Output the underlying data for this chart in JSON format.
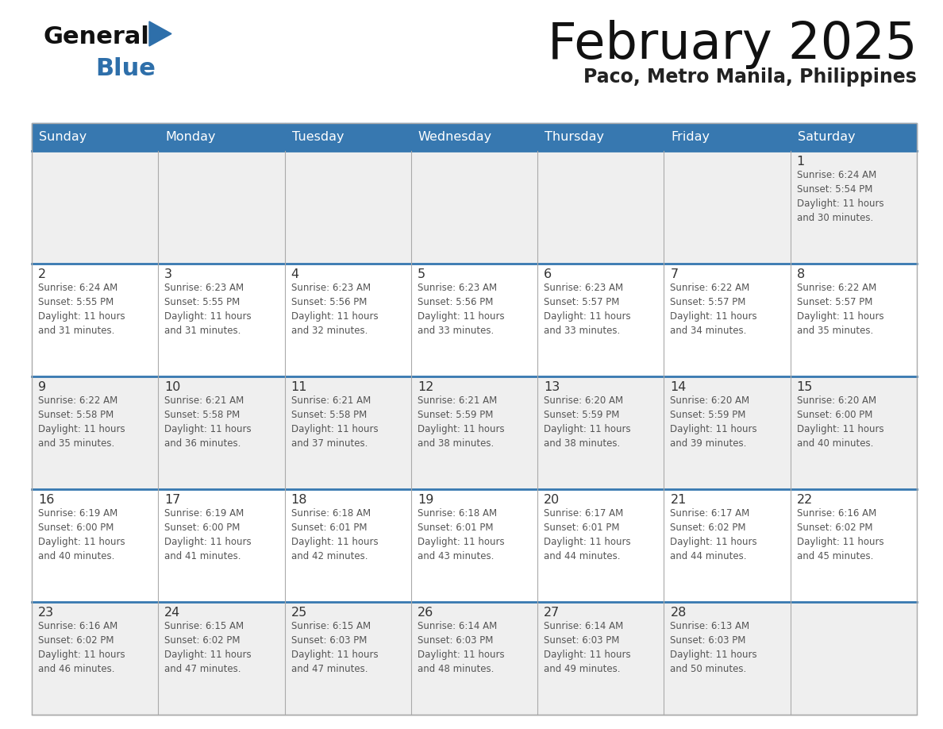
{
  "title": "February 2025",
  "subtitle": "Paco, Metro Manila, Philippines",
  "header_color": "#3778b0",
  "header_text_color": "#ffffff",
  "day_names": [
    "Sunday",
    "Monday",
    "Tuesday",
    "Wednesday",
    "Thursday",
    "Friday",
    "Saturday"
  ],
  "bg_color": "#ffffff",
  "row_colors": [
    "#efefef",
    "#ffffff",
    "#efefef",
    "#ffffff",
    "#efefef"
  ],
  "border_color": "#3778b0",
  "thin_border_color": "#aaaaaa",
  "day_number_color": "#333333",
  "info_color": "#555555",
  "logo_general_color": "#111111",
  "logo_blue_color": "#2e6faa",
  "weeks": [
    [
      {
        "day": null,
        "info": null
      },
      {
        "day": null,
        "info": null
      },
      {
        "day": null,
        "info": null
      },
      {
        "day": null,
        "info": null
      },
      {
        "day": null,
        "info": null
      },
      {
        "day": null,
        "info": null
      },
      {
        "day": 1,
        "info": "Sunrise: 6:24 AM\nSunset: 5:54 PM\nDaylight: 11 hours\nand 30 minutes."
      }
    ],
    [
      {
        "day": 2,
        "info": "Sunrise: 6:24 AM\nSunset: 5:55 PM\nDaylight: 11 hours\nand 31 minutes."
      },
      {
        "day": 3,
        "info": "Sunrise: 6:23 AM\nSunset: 5:55 PM\nDaylight: 11 hours\nand 31 minutes."
      },
      {
        "day": 4,
        "info": "Sunrise: 6:23 AM\nSunset: 5:56 PM\nDaylight: 11 hours\nand 32 minutes."
      },
      {
        "day": 5,
        "info": "Sunrise: 6:23 AM\nSunset: 5:56 PM\nDaylight: 11 hours\nand 33 minutes."
      },
      {
        "day": 6,
        "info": "Sunrise: 6:23 AM\nSunset: 5:57 PM\nDaylight: 11 hours\nand 33 minutes."
      },
      {
        "day": 7,
        "info": "Sunrise: 6:22 AM\nSunset: 5:57 PM\nDaylight: 11 hours\nand 34 minutes."
      },
      {
        "day": 8,
        "info": "Sunrise: 6:22 AM\nSunset: 5:57 PM\nDaylight: 11 hours\nand 35 minutes."
      }
    ],
    [
      {
        "day": 9,
        "info": "Sunrise: 6:22 AM\nSunset: 5:58 PM\nDaylight: 11 hours\nand 35 minutes."
      },
      {
        "day": 10,
        "info": "Sunrise: 6:21 AM\nSunset: 5:58 PM\nDaylight: 11 hours\nand 36 minutes."
      },
      {
        "day": 11,
        "info": "Sunrise: 6:21 AM\nSunset: 5:58 PM\nDaylight: 11 hours\nand 37 minutes."
      },
      {
        "day": 12,
        "info": "Sunrise: 6:21 AM\nSunset: 5:59 PM\nDaylight: 11 hours\nand 38 minutes."
      },
      {
        "day": 13,
        "info": "Sunrise: 6:20 AM\nSunset: 5:59 PM\nDaylight: 11 hours\nand 38 minutes."
      },
      {
        "day": 14,
        "info": "Sunrise: 6:20 AM\nSunset: 5:59 PM\nDaylight: 11 hours\nand 39 minutes."
      },
      {
        "day": 15,
        "info": "Sunrise: 6:20 AM\nSunset: 6:00 PM\nDaylight: 11 hours\nand 40 minutes."
      }
    ],
    [
      {
        "day": 16,
        "info": "Sunrise: 6:19 AM\nSunset: 6:00 PM\nDaylight: 11 hours\nand 40 minutes."
      },
      {
        "day": 17,
        "info": "Sunrise: 6:19 AM\nSunset: 6:00 PM\nDaylight: 11 hours\nand 41 minutes."
      },
      {
        "day": 18,
        "info": "Sunrise: 6:18 AM\nSunset: 6:01 PM\nDaylight: 11 hours\nand 42 minutes."
      },
      {
        "day": 19,
        "info": "Sunrise: 6:18 AM\nSunset: 6:01 PM\nDaylight: 11 hours\nand 43 minutes."
      },
      {
        "day": 20,
        "info": "Sunrise: 6:17 AM\nSunset: 6:01 PM\nDaylight: 11 hours\nand 44 minutes."
      },
      {
        "day": 21,
        "info": "Sunrise: 6:17 AM\nSunset: 6:02 PM\nDaylight: 11 hours\nand 44 minutes."
      },
      {
        "day": 22,
        "info": "Sunrise: 6:16 AM\nSunset: 6:02 PM\nDaylight: 11 hours\nand 45 minutes."
      }
    ],
    [
      {
        "day": 23,
        "info": "Sunrise: 6:16 AM\nSunset: 6:02 PM\nDaylight: 11 hours\nand 46 minutes."
      },
      {
        "day": 24,
        "info": "Sunrise: 6:15 AM\nSunset: 6:02 PM\nDaylight: 11 hours\nand 47 minutes."
      },
      {
        "day": 25,
        "info": "Sunrise: 6:15 AM\nSunset: 6:03 PM\nDaylight: 11 hours\nand 47 minutes."
      },
      {
        "day": 26,
        "info": "Sunrise: 6:14 AM\nSunset: 6:03 PM\nDaylight: 11 hours\nand 48 minutes."
      },
      {
        "day": 27,
        "info": "Sunrise: 6:14 AM\nSunset: 6:03 PM\nDaylight: 11 hours\nand 49 minutes."
      },
      {
        "day": 28,
        "info": "Sunrise: 6:13 AM\nSunset: 6:03 PM\nDaylight: 11 hours\nand 50 minutes."
      },
      {
        "day": null,
        "info": null
      }
    ]
  ]
}
